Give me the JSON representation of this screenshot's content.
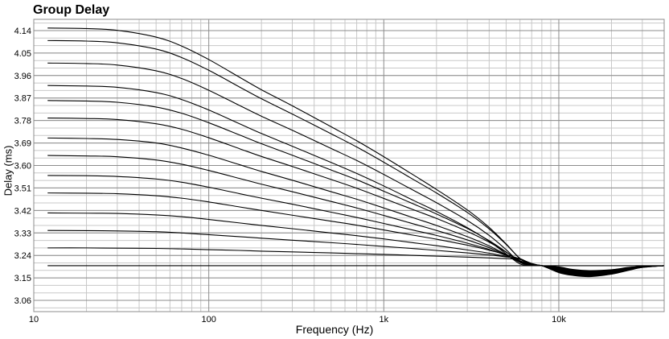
{
  "chart_data": {
    "type": "line",
    "title": "Group Delay",
    "xlabel": "Frequency (Hz)",
    "ylabel": "Delay (ms)",
    "xscale": "log",
    "xlim": [
      10,
      40000
    ],
    "ylim": [
      3.015,
      4.185
    ],
    "xticks": [
      10,
      100,
      1000,
      10000
    ],
    "xtick_labels": [
      "10",
      "100",
      "1k",
      "10k"
    ],
    "yticks": [
      3.06,
      3.15,
      3.24,
      3.33,
      3.42,
      3.51,
      3.6,
      3.69,
      3.78,
      3.87,
      3.96,
      4.05,
      4.14
    ],
    "ytick_labels": [
      "3.06",
      "3.15",
      "3.24",
      "3.33",
      "3.42",
      "3.51",
      "3.60",
      "3.69",
      "3.78",
      "3.87",
      "3.96",
      "4.05",
      "4.14"
    ],
    "grid": true,
    "legend": "none",
    "line_color": "#000000",
    "grid_color": "#c8c8c8",
    "major_grid_color": "#8c8c8c",
    "x": [
      12,
      20,
      30,
      50,
      70,
      100,
      150,
      200,
      300,
      500,
      700,
      1000,
      1500,
      2000,
      3000,
      4000,
      5000,
      6000,
      7000,
      8000,
      10000,
      12000,
      15000,
      20000,
      25000,
      30000,
      40000
    ],
    "series": [
      {
        "values": [
          4.15,
          4.148,
          4.141,
          4.114,
          4.078,
          4.024,
          3.953,
          3.903,
          3.839,
          3.755,
          3.699,
          3.635,
          3.559,
          3.504,
          3.422,
          3.352,
          3.286,
          3.227,
          3.202,
          3.199,
          3.171,
          3.16,
          3.155,
          3.165,
          3.18,
          3.192,
          3.199
        ]
      },
      {
        "values": [
          4.1,
          4.098,
          4.091,
          4.066,
          4.032,
          3.981,
          3.914,
          3.867,
          3.806,
          3.727,
          3.674,
          3.613,
          3.541,
          3.49,
          3.412,
          3.346,
          3.284,
          3.228,
          3.202,
          3.199,
          3.172,
          3.162,
          3.157,
          3.166,
          3.181,
          3.192,
          3.199
        ]
      },
      {
        "values": [
          4.01,
          4.008,
          4.002,
          3.979,
          3.948,
          3.901,
          3.84,
          3.797,
          3.741,
          3.668,
          3.62,
          3.564,
          3.498,
          3.451,
          3.38,
          3.32,
          3.263,
          3.212,
          3.2,
          3.199,
          3.174,
          3.164,
          3.159,
          3.168,
          3.182,
          3.193,
          3.199
        ]
      },
      {
        "values": [
          3.92,
          3.918,
          3.913,
          3.892,
          3.864,
          3.822,
          3.767,
          3.728,
          3.677,
          3.612,
          3.568,
          3.518,
          3.458,
          3.416,
          3.351,
          3.297,
          3.246,
          3.206,
          3.2,
          3.199,
          3.176,
          3.166,
          3.161,
          3.169,
          3.183,
          3.193,
          3.199
        ]
      },
      {
        "values": [
          3.86,
          3.858,
          3.853,
          3.834,
          3.809,
          3.771,
          3.722,
          3.687,
          3.641,
          3.582,
          3.543,
          3.497,
          3.444,
          3.406,
          3.348,
          3.299,
          3.254,
          3.214,
          3.201,
          3.199,
          3.178,
          3.168,
          3.163,
          3.17,
          3.184,
          3.194,
          3.199
        ]
      },
      {
        "values": [
          3.79,
          3.788,
          3.784,
          3.767,
          3.745,
          3.711,
          3.667,
          3.636,
          3.596,
          3.544,
          3.509,
          3.468,
          3.421,
          3.388,
          3.336,
          3.293,
          3.253,
          3.217,
          3.201,
          3.199,
          3.18,
          3.17,
          3.165,
          3.172,
          3.185,
          3.194,
          3.199
        ]
      },
      {
        "values": [
          3.71,
          3.708,
          3.704,
          3.69,
          3.67,
          3.641,
          3.603,
          3.576,
          3.541,
          3.495,
          3.465,
          3.43,
          3.389,
          3.36,
          3.315,
          3.278,
          3.243,
          3.212,
          3.2,
          3.199,
          3.182,
          3.172,
          3.167,
          3.173,
          3.186,
          3.194,
          3.199
        ]
      },
      {
        "values": [
          3.64,
          3.638,
          3.635,
          3.622,
          3.605,
          3.58,
          3.548,
          3.525,
          3.495,
          3.456,
          3.43,
          3.4,
          3.365,
          3.34,
          3.302,
          3.271,
          3.241,
          3.215,
          3.201,
          3.199,
          3.184,
          3.174,
          3.169,
          3.175,
          3.187,
          3.195,
          3.199
        ]
      },
      {
        "values": [
          3.56,
          3.559,
          3.556,
          3.546,
          3.533,
          3.513,
          3.487,
          3.469,
          3.445,
          3.413,
          3.392,
          3.368,
          3.34,
          3.32,
          3.289,
          3.264,
          3.24,
          3.219,
          3.202,
          3.199,
          3.186,
          3.176,
          3.171,
          3.176,
          3.188,
          3.195,
          3.199
        ]
      },
      {
        "values": [
          3.49,
          3.489,
          3.487,
          3.479,
          3.469,
          3.454,
          3.434,
          3.42,
          3.401,
          3.377,
          3.361,
          3.342,
          3.32,
          3.305,
          3.281,
          3.261,
          3.243,
          3.226,
          3.205,
          3.199,
          3.188,
          3.178,
          3.173,
          3.178,
          3.189,
          3.195,
          3.199
        ]
      },
      {
        "values": [
          3.41,
          3.409,
          3.408,
          3.402,
          3.395,
          3.384,
          3.37,
          3.36,
          3.347,
          3.33,
          3.319,
          3.306,
          3.29,
          3.279,
          3.262,
          3.249,
          3.236,
          3.224,
          3.204,
          3.199,
          3.19,
          3.18,
          3.175,
          3.18,
          3.19,
          3.196,
          3.199
        ]
      },
      {
        "values": [
          3.34,
          3.339,
          3.338,
          3.335,
          3.33,
          3.323,
          3.315,
          3.309,
          3.301,
          3.291,
          3.284,
          3.276,
          3.267,
          3.26,
          3.25,
          3.242,
          3.234,
          3.227,
          3.206,
          3.199,
          3.192,
          3.182,
          3.177,
          3.181,
          3.191,
          3.196,
          3.199
        ]
      },
      {
        "values": [
          3.27,
          3.27,
          3.269,
          3.268,
          3.266,
          3.263,
          3.26,
          3.257,
          3.254,
          3.25,
          3.247,
          3.244,
          3.24,
          3.237,
          3.233,
          3.23,
          3.227,
          3.224,
          3.208,
          3.199,
          3.194,
          3.184,
          3.179,
          3.183,
          3.192,
          3.196,
          3.199
        ]
      },
      {
        "values": [
          3.199,
          3.199,
          3.199,
          3.199,
          3.199,
          3.199,
          3.199,
          3.199,
          3.199,
          3.199,
          3.199,
          3.199,
          3.199,
          3.199,
          3.199,
          3.199,
          3.199,
          3.199,
          3.199,
          3.199,
          3.199,
          3.199,
          3.199,
          3.199,
          3.199,
          3.199,
          3.199
        ]
      }
    ]
  }
}
